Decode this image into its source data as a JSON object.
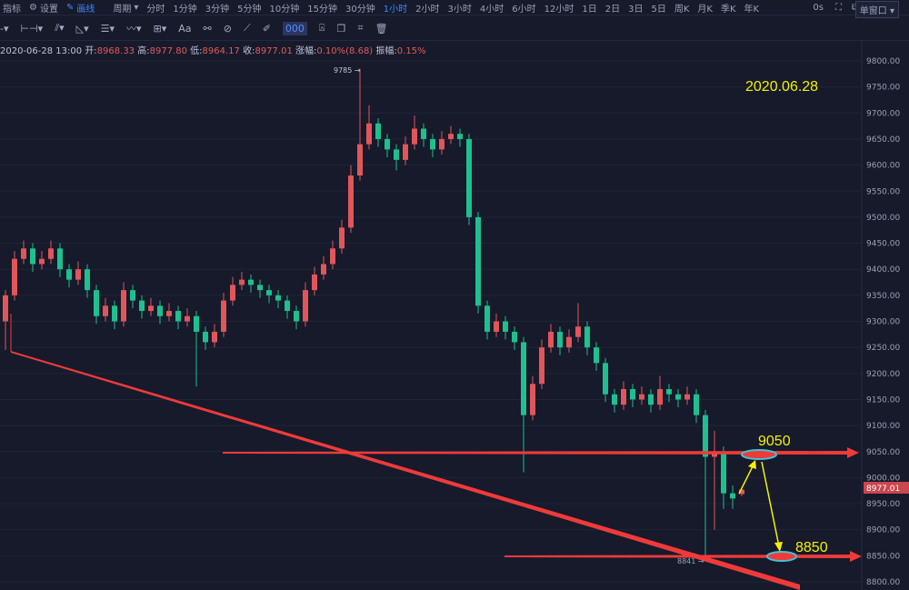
{
  "topbar": {
    "indicators": "指标",
    "settings": "设置",
    "draw": "画线",
    "period": "周期",
    "intervals": [
      "分时",
      "1分钟",
      "3分钟",
      "5分钟",
      "10分钟",
      "15分钟",
      "30分钟",
      "1小时",
      "2小时",
      "3小时",
      "4小时",
      "6小时",
      "12小时",
      "1日",
      "2日",
      "3日",
      "5日",
      "周K",
      "月K",
      "季K",
      "年K"
    ],
    "active_interval": "1小时",
    "countdown": "0s",
    "window_mode": "单窗口"
  },
  "toolbar": {
    "icons": [
      "line-tool-icon",
      "horizontal-line-icon",
      "parallel-channel-icon",
      "triangle-icon",
      "fib-icon",
      "wave-icon",
      "measure-box-icon",
      "text-icon",
      "pattern-icon",
      "link-icon",
      "ruler-icon",
      "brush-icon",
      "visibility-icon",
      "lock-icon",
      "copy-icon",
      "screenshot-icon",
      "delete-icon"
    ],
    "text_label": "Aa",
    "active_label": "000"
  },
  "info": {
    "datetime": "2020-06-28 13:00",
    "open_label": "开:",
    "open": "8968.33",
    "high_label": "高:",
    "high": "8977.80",
    "low_label": "低:",
    "low": "8964.17",
    "close_label": "收:",
    "close": "8977.01",
    "change_label": "涨幅:",
    "change": "0.10%(8.68)",
    "amplitude_label": "振幅:",
    "amplitude": "0.15%"
  },
  "colors": {
    "up": "#e0565b",
    "down": "#1fbf8f",
    "background": "#161a2b",
    "annotation_line": "#f03a3a",
    "annotation_text": "#f5f000",
    "ellipse": "#3fc4d6"
  },
  "chart_data": {
    "type": "candlestick",
    "ylim": [
      8800,
      9800
    ],
    "yticks": [
      "9800.00",
      "9750.00",
      "9700.00",
      "9650.00",
      "9600.00",
      "9550.00",
      "9500.00",
      "9450.00",
      "9400.00",
      "9350.00",
      "9300.00",
      "9250.00",
      "9200.00",
      "9150.00",
      "9100.00",
      "9050.00",
      "9000.00",
      "8950.00",
      "8900.00",
      "8850.00",
      "8800.00"
    ],
    "last_price": "8977.01",
    "high_marker": "9785 →",
    "low_marker": "8841 →",
    "annotations": {
      "date": "2020.06.28",
      "level_upper": "9050",
      "level_lower": "8850"
    },
    "candles": [
      [
        9300,
        9360,
        9245,
        9350
      ],
      [
        9350,
        9435,
        9340,
        9420
      ],
      [
        9420,
        9455,
        9410,
        9440
      ],
      [
        9440,
        9450,
        9395,
        9410
      ],
      [
        9410,
        9435,
        9400,
        9420
      ],
      [
        9420,
        9455,
        9410,
        9440
      ],
      [
        9440,
        9450,
        9385,
        9400
      ],
      [
        9400,
        9410,
        9365,
        9380
      ],
      [
        9380,
        9415,
        9370,
        9400
      ],
      [
        9400,
        9410,
        9345,
        9360
      ],
      [
        9360,
        9370,
        9295,
        9310
      ],
      [
        9310,
        9345,
        9300,
        9330
      ],
      [
        9330,
        9340,
        9285,
        9300
      ],
      [
        9300,
        9375,
        9290,
        9360
      ],
      [
        9360,
        9370,
        9325,
        9340
      ],
      [
        9340,
        9350,
        9305,
        9320
      ],
      [
        9320,
        9345,
        9310,
        9330
      ],
      [
        9330,
        9340,
        9295,
        9310
      ],
      [
        9310,
        9335,
        9300,
        9320
      ],
      [
        9320,
        9330,
        9285,
        9300
      ],
      [
        9300,
        9325,
        9290,
        9310
      ],
      [
        9310,
        9320,
        9175,
        9280
      ],
      [
        9280,
        9290,
        9245,
        9260
      ],
      [
        9260,
        9295,
        9250,
        9280
      ],
      [
        9280,
        9355,
        9270,
        9340
      ],
      [
        9340,
        9385,
        9330,
        9370
      ],
      [
        9370,
        9395,
        9360,
        9380
      ],
      [
        9380,
        9390,
        9355,
        9370
      ],
      [
        9370,
        9380,
        9345,
        9360
      ],
      [
        9360,
        9370,
        9335,
        9350
      ],
      [
        9350,
        9360,
        9325,
        9340
      ],
      [
        9340,
        9350,
        9305,
        9320
      ],
      [
        9320,
        9330,
        9285,
        9300
      ],
      [
        9300,
        9375,
        9290,
        9360
      ],
      [
        9360,
        9405,
        9350,
        9390
      ],
      [
        9390,
        9425,
        9380,
        9410
      ],
      [
        9410,
        9455,
        9400,
        9440
      ],
      [
        9440,
        9495,
        9430,
        9480
      ],
      [
        9480,
        9600,
        9470,
        9580
      ],
      [
        9580,
        9785,
        9570,
        9640
      ],
      [
        9640,
        9715,
        9630,
        9680
      ],
      [
        9680,
        9690,
        9635,
        9650
      ],
      [
        9650,
        9660,
        9615,
        9630
      ],
      [
        9630,
        9640,
        9590,
        9610
      ],
      [
        9610,
        9655,
        9600,
        9640
      ],
      [
        9640,
        9695,
        9630,
        9670
      ],
      [
        9670,
        9680,
        9635,
        9650
      ],
      [
        9650,
        9660,
        9615,
        9630
      ],
      [
        9630,
        9665,
        9620,
        9650
      ],
      [
        9650,
        9675,
        9640,
        9660
      ],
      [
        9660,
        9670,
        9635,
        9650
      ],
      [
        9650,
        9660,
        9485,
        9500
      ],
      [
        9500,
        9510,
        9315,
        9330
      ],
      [
        9330,
        9340,
        9265,
        9280
      ],
      [
        9280,
        9315,
        9270,
        9300
      ],
      [
        9300,
        9310,
        9265,
        9280
      ],
      [
        9280,
        9290,
        9245,
        9260
      ],
      [
        9260,
        9270,
        9010,
        9120
      ],
      [
        9120,
        9195,
        9110,
        9180
      ],
      [
        9180,
        9265,
        9170,
        9250
      ],
      [
        9250,
        9295,
        9240,
        9280
      ],
      [
        9280,
        9290,
        9235,
        9250
      ],
      [
        9250,
        9285,
        9240,
        9270
      ],
      [
        9270,
        9335,
        9260,
        9290
      ],
      [
        9290,
        9300,
        9235,
        9250
      ],
      [
        9250,
        9260,
        9205,
        9220
      ],
      [
        9220,
        9230,
        9145,
        9160
      ],
      [
        9160,
        9170,
        9125,
        9140
      ],
      [
        9140,
        9185,
        9130,
        9170
      ],
      [
        9170,
        9180,
        9135,
        9150
      ],
      [
        9150,
        9175,
        9140,
        9160
      ],
      [
        9160,
        9170,
        9125,
        9140
      ],
      [
        9140,
        9195,
        9130,
        9170
      ],
      [
        9170,
        9180,
        9145,
        9160
      ],
      [
        9160,
        9170,
        9135,
        9150
      ],
      [
        9150,
        9175,
        9140,
        9160
      ],
      [
        9160,
        9170,
        9105,
        9120
      ],
      [
        9120,
        9130,
        8841,
        9040
      ],
      [
        9040,
        9090,
        8900,
        9050
      ],
      [
        9050,
        9060,
        8940,
        8970
      ],
      [
        8970,
        8985,
        8940,
        8960
      ],
      [
        8968.33,
        8977.8,
        8964.17,
        8977.01
      ]
    ]
  }
}
